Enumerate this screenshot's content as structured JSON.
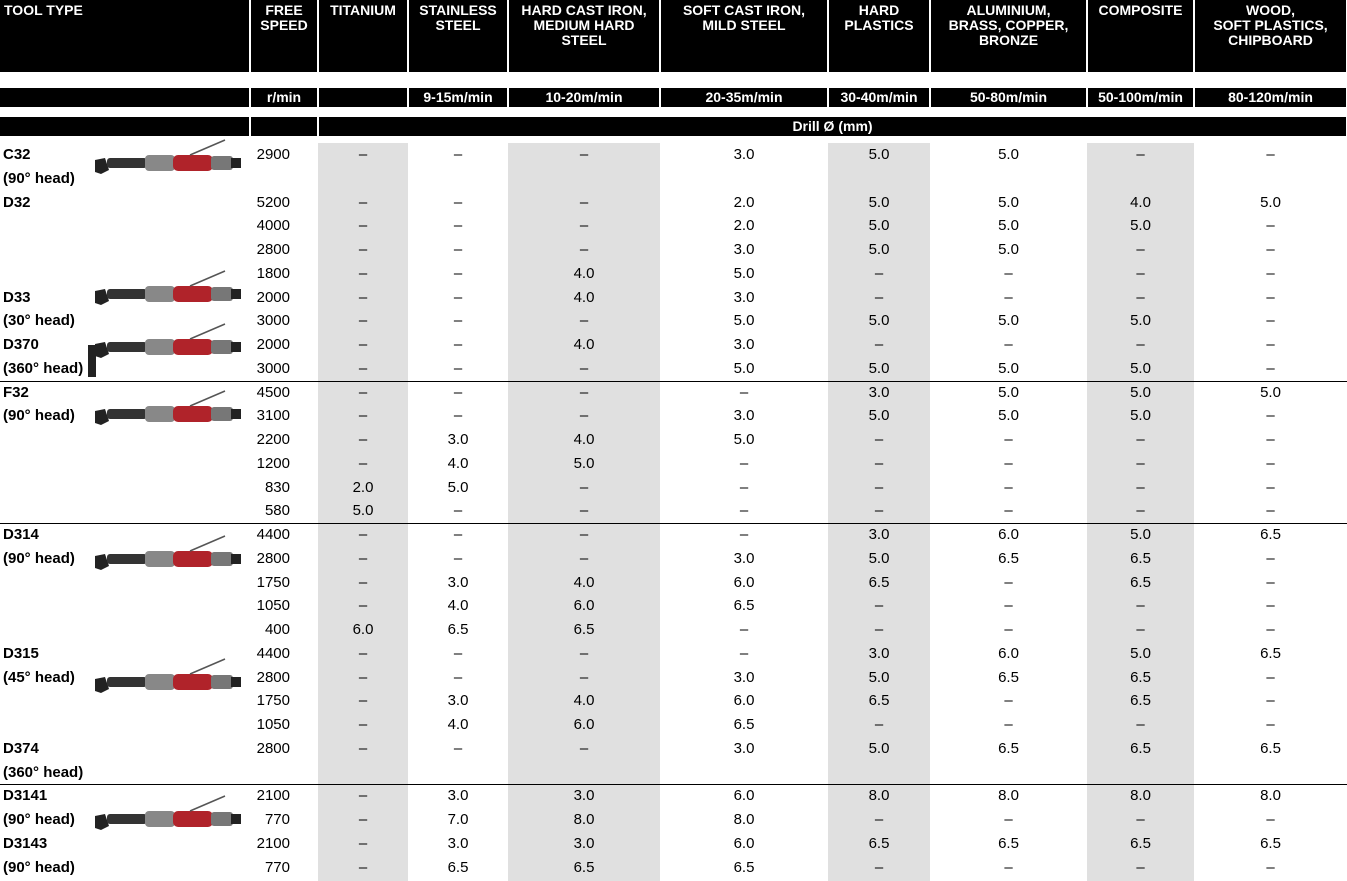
{
  "header": {
    "columns": [
      [
        "TOOL TYPE"
      ],
      [
        "FREE",
        "SPEED"
      ],
      [
        "TITANIUM"
      ],
      [
        "STAINLESS",
        "STEEL"
      ],
      [
        "HARD CAST IRON,",
        "MEDIUM HARD",
        "STEEL"
      ],
      [
        "SOFT CAST IRON,",
        "MILD STEEL"
      ],
      [
        "HARD",
        "PLASTICS"
      ],
      [
        "ALUMINIUM,",
        "BRASS, COPPER,",
        "BRONZE"
      ],
      [
        "COMPOSITE"
      ],
      [
        "WOOD,",
        "SOFT PLASTICS,",
        "CHIPBOARD"
      ]
    ],
    "units": [
      null,
      "r/min",
      null,
      "9-15m/min",
      "10-20m/min",
      "20-35m/min",
      "30-40m/min",
      "50-80m/min",
      "50-100m/min",
      "80-120m/min"
    ],
    "drill": "Drill Ø (mm)"
  },
  "sections": [
    [
      {
        "tool": "C32",
        "speed": "2900",
        "cells": [
          "–",
          "–",
          "–",
          "3.0",
          "5.0",
          "5.0",
          "–",
          "–"
        ]
      },
      {
        "tool": "(90° head)"
      },
      {
        "tool": "D32",
        "speed": "5200",
        "cells": [
          "–",
          "–",
          "–",
          "2.0",
          "5.0",
          "5.0",
          "4.0",
          "5.0"
        ]
      },
      {
        "speed": "4000",
        "cells": [
          "–",
          "–",
          "–",
          "2.0",
          "5.0",
          "5.0",
          "5.0",
          "–"
        ]
      },
      {
        "speed": "2800",
        "cells": [
          "–",
          "–",
          "–",
          "3.0",
          "5.0",
          "5.0",
          "–",
          "–"
        ]
      },
      {
        "speed": "1800",
        "cells": [
          "–",
          "–",
          "4.0",
          "5.0",
          "–",
          "–",
          "–",
          "–"
        ]
      },
      {
        "tool": "D33",
        "speed": "2000",
        "cells": [
          "–",
          "–",
          "4.0",
          "3.0",
          "–",
          "–",
          "–",
          "–"
        ]
      },
      {
        "tool": "(30° head)",
        "speed": "3000",
        "cells": [
          "–",
          "–",
          "–",
          "5.0",
          "5.0",
          "5.0",
          "5.0",
          "–"
        ]
      },
      {
        "tool": "D370",
        "speed": "2000",
        "cells": [
          "–",
          "–",
          "4.0",
          "3.0",
          "–",
          "–",
          "–",
          "–"
        ]
      },
      {
        "tool": "(360° head)",
        "speed": "3000",
        "cells": [
          "–",
          "–",
          "–",
          "5.0",
          "5.0",
          "5.0",
          "5.0",
          "–"
        ]
      }
    ],
    [
      {
        "tool": "F32",
        "speed": "4500",
        "cells": [
          "–",
          "–",
          "–",
          "–",
          "3.0",
          "5.0",
          "5.0",
          "5.0"
        ]
      },
      {
        "tool": "(90° head)",
        "speed": "3100",
        "cells": [
          "–",
          "–",
          "–",
          "3.0",
          "5.0",
          "5.0",
          "5.0",
          "–"
        ]
      },
      {
        "speed": "2200",
        "cells": [
          "–",
          "3.0",
          "4.0",
          "5.0",
          "–",
          "–",
          "–",
          "–"
        ]
      },
      {
        "speed": "1200",
        "cells": [
          "–",
          "4.0",
          "5.0",
          "–",
          "–",
          "–",
          "–",
          "–"
        ]
      },
      {
        "speed": "830",
        "cells": [
          "2.0",
          "5.0",
          "–",
          "–",
          "–",
          "–",
          "–",
          "–"
        ]
      },
      {
        "speed": "580",
        "cells": [
          "5.0",
          "–",
          "–",
          "–",
          "–",
          "–",
          "–",
          "–"
        ]
      }
    ],
    [
      {
        "tool": "D314",
        "speed": "4400",
        "cells": [
          "–",
          "–",
          "–",
          "–",
          "3.0",
          "6.0",
          "5.0",
          "6.5"
        ]
      },
      {
        "tool": "(90° head)",
        "speed": "2800",
        "cells": [
          "–",
          "–",
          "–",
          "3.0",
          "5.0",
          "6.5",
          "6.5",
          "–"
        ]
      },
      {
        "speed": "1750",
        "cells": [
          "–",
          "3.0",
          "4.0",
          "6.0",
          "6.5",
          "–",
          "6.5",
          "–"
        ]
      },
      {
        "speed": "1050",
        "cells": [
          "–",
          "4.0",
          "6.0",
          "6.5",
          "–",
          "–",
          "–",
          "–"
        ]
      },
      {
        "speed": "400",
        "cells": [
          "6.0",
          "6.5",
          "6.5",
          "–",
          "–",
          "–",
          "–",
          "–"
        ]
      },
      {
        "tool": "D315",
        "speed": "4400",
        "cells": [
          "–",
          "–",
          "–",
          "–",
          "3.0",
          "6.0",
          "5.0",
          "6.5"
        ]
      },
      {
        "tool": "(45° head)",
        "speed": "2800",
        "cells": [
          "–",
          "–",
          "–",
          "3.0",
          "5.0",
          "6.5",
          "6.5",
          "–"
        ]
      },
      {
        "speed": "1750",
        "cells": [
          "–",
          "3.0",
          "4.0",
          "6.0",
          "6.5",
          "–",
          "6.5",
          "–"
        ]
      },
      {
        "speed": "1050",
        "cells": [
          "–",
          "4.0",
          "6.0",
          "6.5",
          "–",
          "–",
          "–",
          "–"
        ]
      },
      {
        "tool": "D374",
        "speed": "2800",
        "cells": [
          "–",
          "–",
          "–",
          "3.0",
          "5.0",
          "6.5",
          "6.5",
          "6.5"
        ]
      },
      {
        "tool": "(360° head)"
      }
    ],
    [
      {
        "tool": "D3141",
        "speed": "2100",
        "cells": [
          "–",
          "3.0",
          "3.0",
          "6.0",
          "8.0",
          "8.0",
          "8.0",
          "8.0"
        ]
      },
      {
        "tool": "(90° head)",
        "speed": "770",
        "cells": [
          "–",
          "7.0",
          "8.0",
          "8.0",
          "–",
          "–",
          "–",
          "–"
        ]
      },
      {
        "tool": "D3143",
        "speed": "2100",
        "cells": [
          "–",
          "3.0",
          "3.0",
          "6.0",
          "6.5",
          "6.5",
          "6.5",
          "6.5"
        ]
      },
      {
        "tool": "(90° head)",
        "speed": "770",
        "cells": [
          "–",
          "6.5",
          "6.5",
          "6.5",
          "–",
          "–",
          "–",
          "–"
        ]
      }
    ]
  ]
}
